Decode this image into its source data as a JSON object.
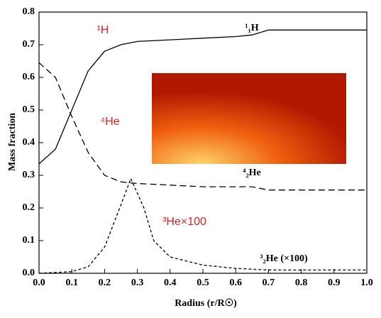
{
  "chart_data": {
    "type": "line",
    "xlabel": "Radius (r/R☉)",
    "ylabel": "Mass fraction",
    "xlim": [
      0,
      1
    ],
    "ylim": [
      0,
      0.8
    ],
    "xticks": [
      {
        "value": 0,
        "label": "0.0"
      },
      0.1,
      0.2,
      0.3,
      0.4,
      0.5,
      0.6,
      0.7,
      0.8,
      0.9,
      {
        "value": 1,
        "label": "1.0"
      }
    ],
    "yticks": [
      {
        "value": 0,
        "label": "0.0"
      },
      0.1,
      0.2,
      0.3,
      0.4,
      0.5,
      0.6,
      0.7,
      0.8
    ],
    "series": [
      {
        "name": "¹₁H",
        "color": "#000000",
        "dash": "none",
        "x": [
          0,
          0.05,
          0.1,
          0.15,
          0.2,
          0.25,
          0.3,
          0.4,
          0.5,
          0.6,
          0.65,
          0.7,
          0.75,
          1.0
        ],
        "values": [
          0.335,
          0.38,
          0.5,
          0.62,
          0.68,
          0.7,
          0.71,
          0.715,
          0.72,
          0.725,
          0.73,
          0.745,
          0.745,
          0.745
        ]
      },
      {
        "name": "⁴₂He",
        "color": "#000000",
        "dash": "9 5",
        "x": [
          0,
          0.05,
          0.1,
          0.15,
          0.2,
          0.25,
          0.3,
          0.4,
          0.5,
          0.6,
          0.65,
          0.7,
          0.75,
          1.0
        ],
        "values": [
          0.645,
          0.6,
          0.48,
          0.37,
          0.3,
          0.28,
          0.275,
          0.27,
          0.265,
          0.265,
          0.265,
          0.255,
          0.255,
          0.255
        ]
      },
      {
        "name": "³₂He (×100)",
        "color": "#000000",
        "dash": "4 3",
        "x": [
          0,
          0.1,
          0.15,
          0.2,
          0.25,
          0.28,
          0.32,
          0.35,
          0.4,
          0.5,
          0.6,
          0.7,
          0.8,
          1.0
        ],
        "values": [
          0,
          0.005,
          0.02,
          0.08,
          0.21,
          0.29,
          0.2,
          0.1,
          0.05,
          0.025,
          0.015,
          0.01,
          0.01,
          0.01
        ]
      }
    ],
    "annotations": [
      "¹H",
      "⁴He",
      "³He×100"
    ]
  }
}
